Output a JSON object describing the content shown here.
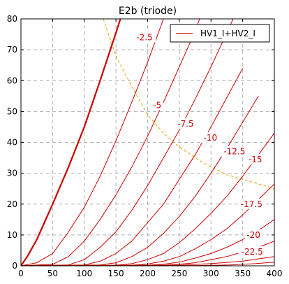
{
  "chart_data": {
    "type": "line",
    "title": "E2b (triode)",
    "xlabel": "",
    "ylabel": "",
    "xlim": [
      0,
      400
    ],
    "ylim": [
      0,
      80
    ],
    "x_ticks": [
      0,
      50,
      100,
      150,
      200,
      250,
      300,
      350,
      400
    ],
    "y_ticks": [
      0,
      10,
      20,
      30,
      40,
      50,
      60,
      70,
      80
    ],
    "grid": true,
    "legend": {
      "position": "top-right",
      "entries": [
        {
          "label": "HV1_I+HV2_I",
          "color": "#cc0000"
        }
      ]
    },
    "colors": {
      "curve": "#cc0000",
      "load_line": "#e8a400",
      "grid": "#b0b0b0"
    },
    "series": [
      {
        "label": "",
        "bold": true,
        "points": [
          [
            0,
            0
          ],
          [
            10,
            3
          ],
          [
            25,
            8.5
          ],
          [
            50,
            20
          ],
          [
            75,
            32
          ],
          [
            100,
            45
          ],
          [
            125,
            60
          ],
          [
            150,
            75.5
          ],
          [
            157,
            80
          ]
        ]
      },
      {
        "label": "-2.5",
        "label_at": [
          195,
          74
        ],
        "points": [
          [
            0,
            0
          ],
          [
            25,
            1
          ],
          [
            50,
            4
          ],
          [
            75,
            11
          ],
          [
            100,
            19
          ],
          [
            125,
            29
          ],
          [
            150,
            40.5
          ],
          [
            175,
            53
          ],
          [
            200,
            66
          ],
          [
            225,
            80
          ]
        ]
      },
      {
        "label": "-5",
        "label_at": [
          215,
          52
        ],
        "points": [
          [
            0,
            0
          ],
          [
            50,
            0.5
          ],
          [
            75,
            3
          ],
          [
            100,
            8
          ],
          [
            125,
            15
          ],
          [
            150,
            23
          ],
          [
            175,
            32
          ],
          [
            200,
            42
          ],
          [
            225,
            53
          ],
          [
            250,
            64.5
          ],
          [
            275,
            76
          ],
          [
            282,
            80
          ]
        ]
      },
      {
        "label": "-7.5",
        "label_at": [
          260,
          46
        ],
        "points": [
          [
            0,
            0
          ],
          [
            75,
            0.3
          ],
          [
            100,
            2
          ],
          [
            125,
            6
          ],
          [
            150,
            11
          ],
          [
            175,
            18
          ],
          [
            200,
            26
          ],
          [
            225,
            35
          ],
          [
            250,
            44
          ],
          [
            275,
            54
          ],
          [
            300,
            64.5
          ],
          [
            325,
            75.5
          ],
          [
            335,
            80
          ]
        ]
      },
      {
        "label": "-10",
        "label_at": [
          299,
          41.5
        ],
        "points": [
          [
            0,
            0
          ],
          [
            100,
            0.3
          ],
          [
            125,
            1.5
          ],
          [
            150,
            4
          ],
          [
            175,
            8
          ],
          [
            200,
            14
          ],
          [
            225,
            20
          ],
          [
            250,
            28
          ],
          [
            275,
            36
          ],
          [
            300,
            45
          ],
          [
            325,
            54.5
          ],
          [
            350,
            64
          ]
        ]
      },
      {
        "label": "-12.5",
        "label_at": [
          337,
          37
        ],
        "points": [
          [
            0,
            0
          ],
          [
            125,
            0.3
          ],
          [
            150,
            1
          ],
          [
            175,
            3
          ],
          [
            200,
            6
          ],
          [
            225,
            10.5
          ],
          [
            250,
            16
          ],
          [
            275,
            22.5
          ],
          [
            300,
            30
          ],
          [
            325,
            38
          ],
          [
            350,
            46.5
          ],
          [
            375,
            55
          ]
        ]
      },
      {
        "label": "-15",
        "label_at": [
          370,
          34.5
        ],
        "points": [
          [
            0,
            0
          ],
          [
            150,
            0.2
          ],
          [
            175,
            0.7
          ],
          [
            200,
            2
          ],
          [
            225,
            4
          ],
          [
            250,
            7.5
          ],
          [
            275,
            12
          ],
          [
            300,
            17
          ],
          [
            325,
            22.5
          ],
          [
            350,
            29
          ],
          [
            375,
            36
          ],
          [
            400,
            43
          ]
        ]
      },
      {
        "label": "-17.5",
        "label_at": [
          364,
          20
        ],
        "points": [
          [
            0,
            0
          ],
          [
            175,
            0.2
          ],
          [
            200,
            0.6
          ],
          [
            225,
            1.5
          ],
          [
            250,
            3
          ],
          [
            275,
            5.5
          ],
          [
            300,
            8.5
          ],
          [
            325,
            12
          ],
          [
            350,
            16.5
          ],
          [
            375,
            21.5
          ],
          [
            400,
            26.5
          ]
        ]
      },
      {
        "label": "-20",
        "label_at": [
          367,
          10
        ],
        "points": [
          [
            0,
            0
          ],
          [
            200,
            0.2
          ],
          [
            225,
            0.5
          ],
          [
            250,
            1.2
          ],
          [
            275,
            2.5
          ],
          [
            300,
            4
          ],
          [
            325,
            6
          ],
          [
            350,
            8.5
          ],
          [
            375,
            11.5
          ],
          [
            400,
            15
          ]
        ]
      },
      {
        "label": "-22.5",
        "label_at": [
          365,
          4.5
        ],
        "points": [
          [
            0,
            0
          ],
          [
            225,
            0.2
          ],
          [
            250,
            0.5
          ],
          [
            275,
            1
          ],
          [
            300,
            2
          ],
          [
            325,
            3
          ],
          [
            350,
            4.5
          ],
          [
            375,
            6
          ],
          [
            400,
            8
          ]
        ]
      },
      {
        "label": "",
        "points": [
          [
            0,
            0
          ],
          [
            250,
            0.2
          ],
          [
            300,
            0.7
          ],
          [
            350,
            1.5
          ],
          [
            400,
            3
          ]
        ]
      },
      {
        "label": "",
        "points": [
          [
            0,
            0
          ],
          [
            280,
            0.1
          ],
          [
            330,
            0.3
          ],
          [
            370,
            0.7
          ],
          [
            400,
            1.2
          ]
        ]
      }
    ],
    "load_line": {
      "style": "dashed",
      "points": [
        [
          130,
          80
        ],
        [
          150,
          68
        ],
        [
          175,
          58
        ],
        [
          200,
          49
        ],
        [
          225,
          43
        ],
        [
          250,
          38.5
        ],
        [
          275,
          35
        ],
        [
          300,
          32
        ],
        [
          325,
          29.5
        ],
        [
          350,
          28
        ],
        [
          375,
          26.5
        ],
        [
          400,
          25
        ]
      ]
    }
  }
}
